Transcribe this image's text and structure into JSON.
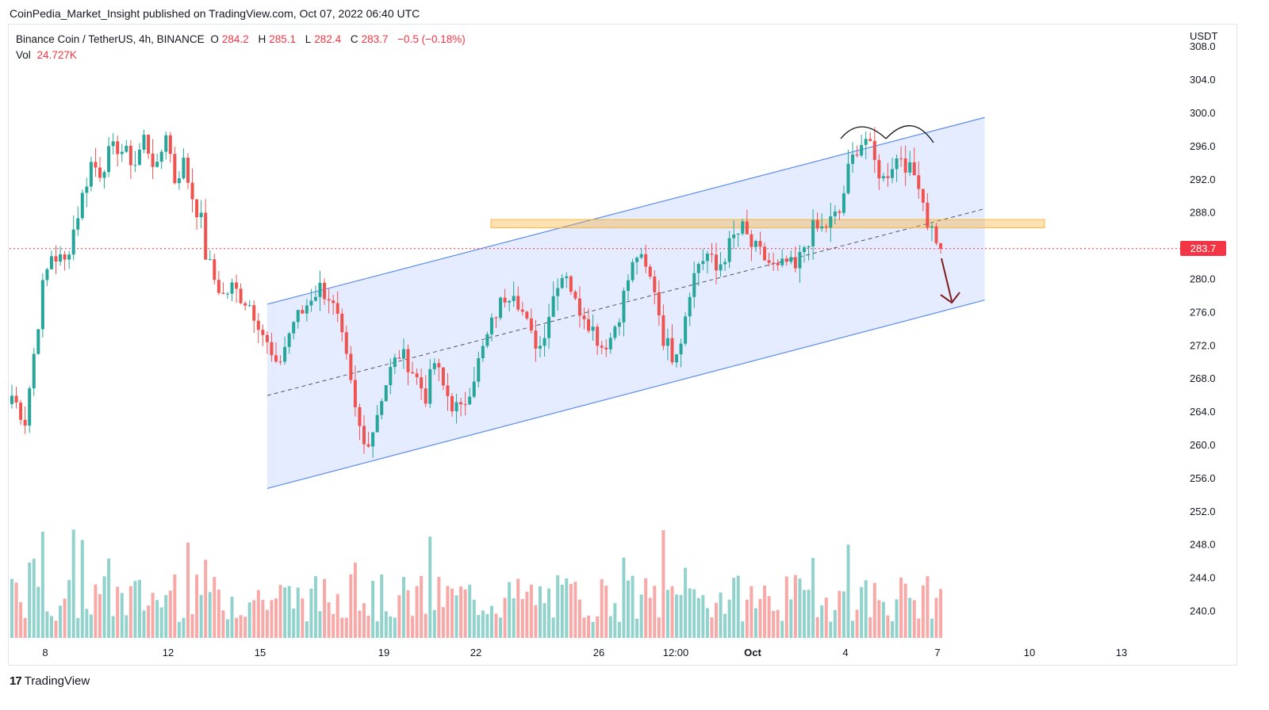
{
  "publisher_line": "CoinPedia_Market_Insight published on TradingView.com, Oct 07, 2022 06:40 UTC",
  "legend": {
    "symbol": "Binance Coin / TetherUS, 4h, BINANCE",
    "open_label": "O",
    "open": "284.2",
    "high_label": "H",
    "high": "285.1",
    "low_label": "L",
    "low": "282.4",
    "close_label": "C",
    "close": "283.7",
    "change": "−0.5 (−0.18%)",
    "vol_label": "Vol",
    "vol": "24.727K"
  },
  "currency": "USDT",
  "price_tag": "283.7",
  "footer_brand": "TradingView",
  "colors": {
    "up": "#26a69a",
    "down": "#ef5350",
    "channel": "#2962ff",
    "zone": "#f9a825",
    "arrow": "#7f1d1d",
    "price_line": "#f23645"
  },
  "chart_data": {
    "type": "candlestick",
    "timeframe": "4h",
    "ylim": [
      236,
      309
    ],
    "y_ticks": [
      "308.0",
      "304.0",
      "300.0",
      "296.0",
      "292.0",
      "288.0",
      "284.0",
      "280.0",
      "276.0",
      "272.0",
      "268.0",
      "264.0",
      "260.0",
      "256.0",
      "252.0",
      "248.0",
      "244.0",
      "240.0"
    ],
    "x_ticks": [
      "8",
      "12",
      "15",
      "19",
      "22",
      "26",
      "12:00",
      "Oct",
      "4",
      "7",
      "10",
      "13"
    ],
    "last_price": 283.7,
    "resistance_zone": [
      286.2,
      287.2
    ],
    "channel_upper": [
      [
        0,
        277.0
      ],
      [
        163,
        299.5
      ]
    ],
    "channel_lower": [
      [
        0,
        254.8
      ],
      [
        163,
        277.5
      ]
    ],
    "channel_mid": [
      [
        0,
        266.0
      ],
      [
        163,
        288.5
      ]
    ],
    "candles_anchor_price_path": [
      [
        0,
        266
      ],
      [
        3,
        263
      ],
      [
        5,
        271
      ],
      [
        7,
        279
      ],
      [
        9,
        283
      ],
      [
        12,
        282
      ],
      [
        14,
        286
      ],
      [
        16,
        290
      ],
      [
        18,
        294
      ],
      [
        20,
        293
      ],
      [
        22,
        295
      ],
      [
        24,
        296
      ],
      [
        26,
        295
      ],
      [
        28,
        294
      ],
      [
        30,
        297
      ],
      [
        33,
        293
      ],
      [
        35,
        298
      ],
      [
        37,
        292
      ],
      [
        39,
        294
      ],
      [
        41,
        290
      ],
      [
        43,
        287
      ],
      [
        44,
        283
      ],
      [
        46,
        280
      ],
      [
        48,
        278
      ],
      [
        50,
        279
      ],
      [
        52,
        278
      ],
      [
        54,
        277
      ],
      [
        56,
        275
      ],
      [
        58,
        272
      ],
      [
        60,
        269
      ],
      [
        62,
        272
      ],
      [
        64,
        275
      ],
      [
        66,
        276
      ],
      [
        68,
        278
      ],
      [
        70,
        279
      ],
      [
        72,
        278
      ],
      [
        74,
        275
      ],
      [
        76,
        270
      ],
      [
        78,
        264
      ],
      [
        80,
        260
      ],
      [
        82,
        262
      ],
      [
        84,
        266
      ],
      [
        86,
        269
      ],
      [
        88,
        271
      ],
      [
        90,
        270
      ],
      [
        92,
        268
      ],
      [
        94,
        266
      ],
      [
        96,
        270
      ],
      [
        98,
        267
      ],
      [
        100,
        265
      ],
      [
        102,
        264
      ],
      [
        104,
        267
      ],
      [
        106,
        270
      ],
      [
        108,
        273
      ],
      [
        110,
        276
      ],
      [
        112,
        278
      ],
      [
        114,
        279
      ],
      [
        116,
        276
      ],
      [
        118,
        273
      ],
      [
        120,
        272
      ],
      [
        122,
        276
      ],
      [
        124,
        280
      ],
      [
        126,
        281
      ],
      [
        128,
        277
      ],
      [
        130,
        276
      ],
      [
        132,
        274
      ],
      [
        134,
        272
      ],
      [
        136,
        273
      ],
      [
        138,
        276
      ],
      [
        140,
        280
      ],
      [
        142,
        283
      ],
      [
        144,
        281
      ],
      [
        146,
        279
      ],
      [
        148,
        273
      ],
      [
        150,
        271
      ],
      [
        152,
        273
      ],
      [
        154,
        279
      ],
      [
        156,
        282
      ],
      [
        158,
        283
      ],
      [
        160,
        281
      ],
      [
        162,
        283
      ],
      [
        164,
        285
      ],
      [
        166,
        286
      ],
      [
        168,
        284
      ],
      [
        170,
        283
      ],
      [
        172,
        282
      ],
      [
        174,
        281
      ],
      [
        176,
        282
      ],
      [
        178,
        281
      ],
      [
        180,
        284
      ],
      [
        182,
        286
      ],
      [
        184,
        286
      ],
      [
        186,
        287
      ],
      [
        188,
        288
      ],
      [
        190,
        293
      ],
      [
        192,
        296
      ],
      [
        194,
        297
      ],
      [
        196,
        294
      ],
      [
        198,
        292
      ],
      [
        200,
        294
      ],
      [
        202,
        295
      ],
      [
        204,
        293
      ],
      [
        206,
        292
      ],
      [
        208,
        287
      ],
      [
        210,
        285
      ],
      [
        211,
        283.7
      ]
    ],
    "volume": {
      "max_bar_value": 24.727,
      "unit": "K"
    },
    "annotations": [
      "double top arcs",
      "down arrow to channel support"
    ]
  }
}
